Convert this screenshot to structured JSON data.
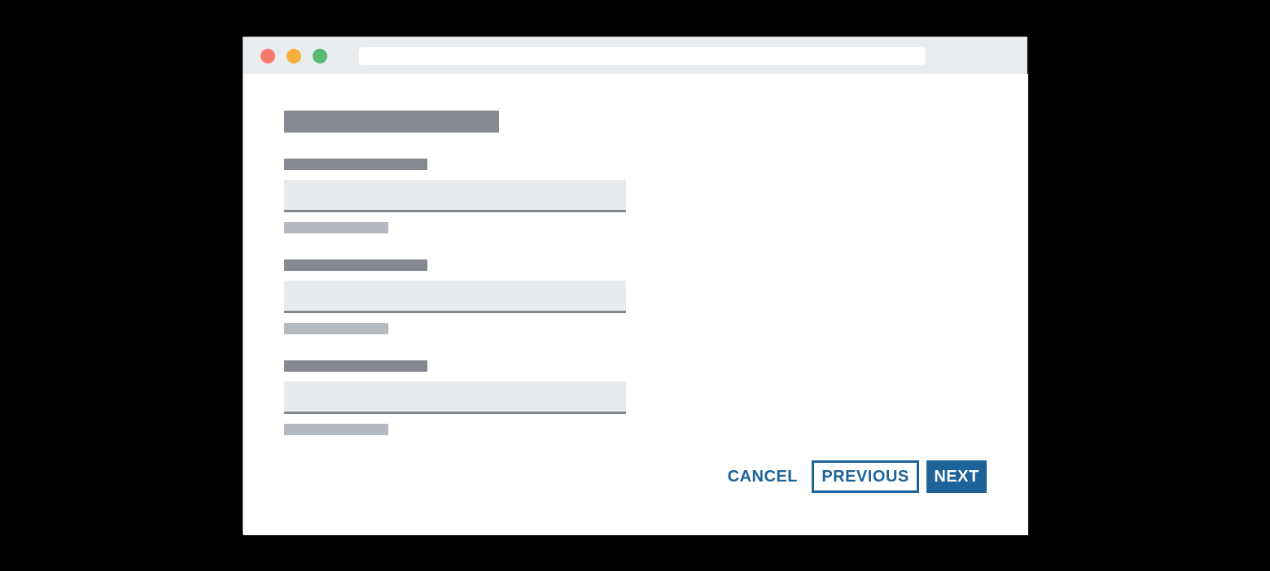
{
  "window": {
    "chrome": {
      "traffic_lights": [
        {
          "name": "close",
          "color": "#f8796c"
        },
        {
          "name": "minimize",
          "color": "#f7b03e"
        },
        {
          "name": "zoom",
          "color": "#58b96f"
        }
      ],
      "address_bar": {
        "value": "",
        "placeholder": ""
      }
    },
    "form": {
      "skeleton": {
        "title_bar": true,
        "field_count": 3,
        "field_parts": [
          "label-bar",
          "input",
          "helper-bar"
        ]
      },
      "fields": [
        {
          "value": "",
          "placeholder": ""
        },
        {
          "value": "",
          "placeholder": ""
        },
        {
          "value": "",
          "placeholder": ""
        }
      ],
      "actions": {
        "cancel_label": "CANCEL",
        "previous_label": "PREVIOUS",
        "next_label": "NEXT"
      }
    }
  },
  "colors": {
    "canvas_black": "#000000",
    "window_white": "#ffffff",
    "chrome_gray": "#e9edf0",
    "traffic_red": "#f8796c",
    "traffic_yellow": "#f7b03e",
    "traffic_green": "#58b96f",
    "bar_dark_gray": "#85888f",
    "bar_light_gray": "#b4b8bf",
    "input_fill": "#e8ebee",
    "input_border": "#83878e",
    "accent_blue": "#1d6399"
  }
}
